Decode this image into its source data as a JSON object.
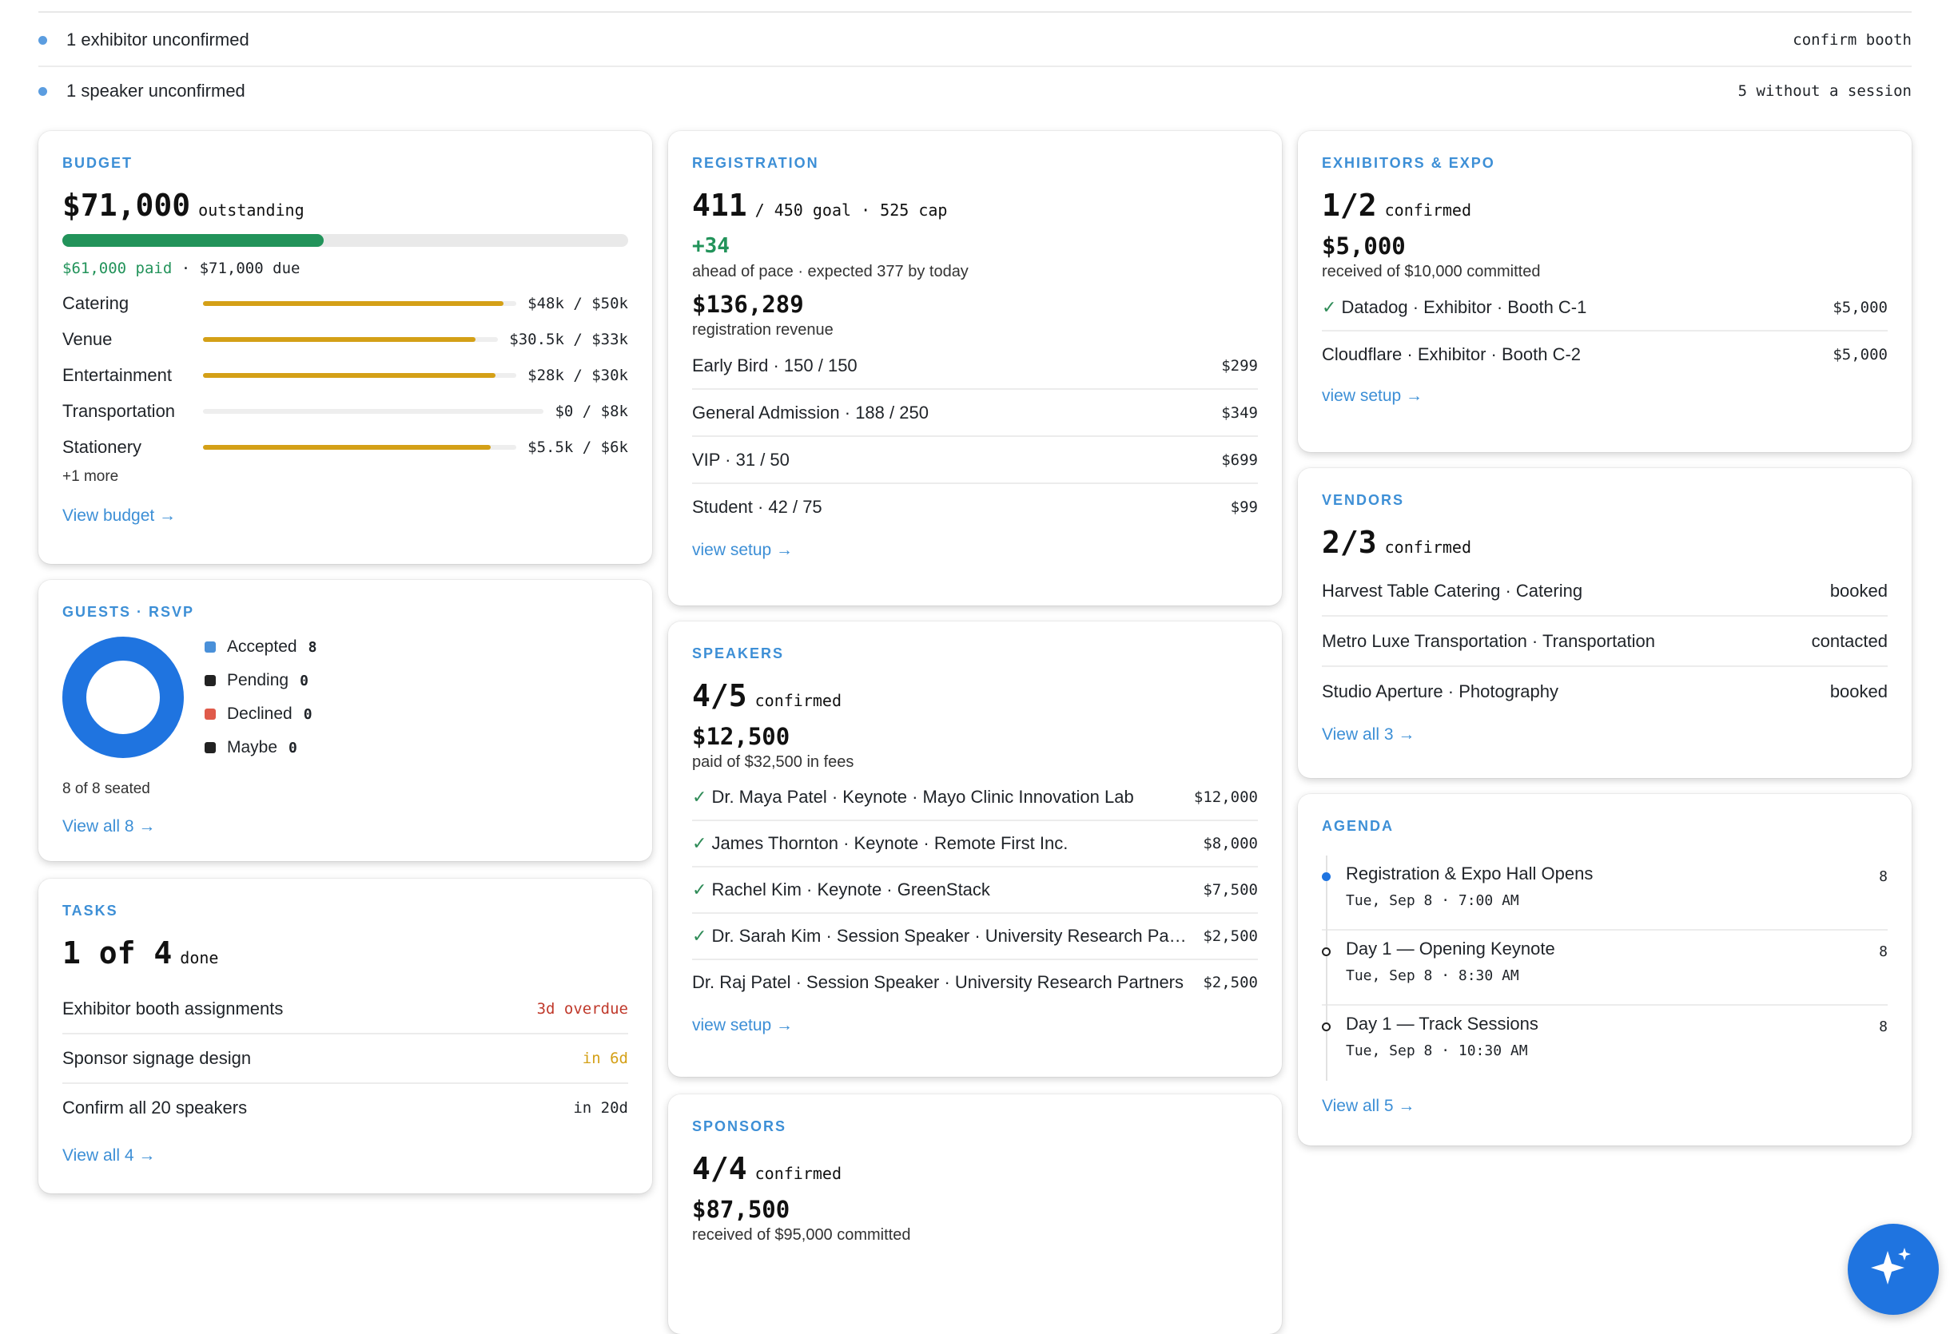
{
  "alerts": [
    {
      "text": "1 exhibitor unconfirmed",
      "action": "confirm booth"
    },
    {
      "text": "1 speaker unconfirmed",
      "action": "5 without a session"
    }
  ],
  "budget": {
    "title": "BUDGET",
    "amount": "$71,000",
    "amount_label": "outstanding",
    "paid_fraction": 0.462,
    "paid_text": "$61,000 paid",
    "due_text": "· $71,000 due",
    "categories": [
      {
        "name": "Catering",
        "amount": "$48k / $50k",
        "fraction": 0.96
      },
      {
        "name": "Venue",
        "amount": "$30.5k / $33k",
        "fraction": 0.924
      },
      {
        "name": "Entertainment",
        "amount": "$28k / $30k",
        "fraction": 0.933
      },
      {
        "name": "Transportation",
        "amount": "$0 / $8k",
        "fraction": 0.0
      },
      {
        "name": "Stationery",
        "amount": "$5.5k / $6k",
        "fraction": 0.917
      }
    ],
    "more": "+1 more",
    "link": "View budget →"
  },
  "guests": {
    "title": "GUESTS · RSVP",
    "legend": [
      {
        "label": "Accepted",
        "count": "8",
        "color": "#4a90d9"
      },
      {
        "label": "Pending",
        "count": "0",
        "color": "#222222"
      },
      {
        "label": "Declined",
        "count": "0",
        "color": "#e05a4a"
      },
      {
        "label": "Maybe",
        "count": "0",
        "color": "#222222"
      }
    ],
    "donut_color": "#1f74e0",
    "seated": "8 of 8 seated",
    "link": "View all 8 →"
  },
  "tasks": {
    "title": "TASKS",
    "done_num": "1 of 4",
    "done_label": "done",
    "items": [
      {
        "name": "Exhibitor booth assignments",
        "due": "3d overdue",
        "color": "#c0392b"
      },
      {
        "name": "Sponsor signage design",
        "due": "in 6d",
        "color": "#d4a017"
      },
      {
        "name": "Confirm all 20 speakers",
        "due": "in 20d",
        "color": "#1f2328"
      }
    ],
    "link": "View all 4 →"
  },
  "registration": {
    "title": "REGISTRATION",
    "count": "411",
    "count_detail": "/ 450 goal · 525 cap",
    "pace": "+34",
    "pace_detail": "ahead of pace · expected 377 by today",
    "revenue": "$136,289",
    "revenue_label": "registration revenue",
    "tiers": [
      {
        "name": "Early Bird · 150 / 150",
        "price": "$299"
      },
      {
        "name": "General Admission · 188 / 250",
        "price": "$349"
      },
      {
        "name": "VIP · 31 / 50",
        "price": "$699"
      },
      {
        "name": "Student · 42 / 75",
        "price": "$99"
      }
    ],
    "link": "view setup →"
  },
  "speakers": {
    "title": "SPEAKERS",
    "count": "4/5",
    "count_label": "confirmed",
    "paid": "$12,500",
    "paid_label": "paid of $32,500 in fees",
    "items": [
      {
        "check": "✓",
        "name": "Dr. Maya Patel · Keynote · Mayo Clinic Innovation Lab",
        "fee": "$12,000"
      },
      {
        "check": "✓",
        "name": "James Thornton · Keynote · Remote First Inc.",
        "fee": "$8,000"
      },
      {
        "check": "✓",
        "name": "Rachel Kim · Keynote · GreenStack",
        "fee": "$7,500"
      },
      {
        "check": "✓",
        "name": "Dr. Sarah Kim · Session Speaker · University Research Partners",
        "fee": "$2,500"
      },
      {
        "check": "",
        "name": "Dr. Raj Patel · Session Speaker · University Research Partners",
        "fee": "$2,500"
      }
    ],
    "link": "view setup →"
  },
  "sponsors": {
    "title": "SPONSORS",
    "count": "4/4",
    "count_label": "confirmed",
    "received": "$87,500",
    "received_label": "received of $95,000 committed"
  },
  "exhibitors": {
    "title": "EXHIBITORS & EXPO",
    "count": "1/2",
    "count_label": "confirmed",
    "received": "$5,000",
    "received_label": "received of $10,000 committed",
    "items": [
      {
        "check": "✓",
        "name": "Datadog · Exhibitor · Booth C-1",
        "amount": "$5,000"
      },
      {
        "check": "",
        "name": "Cloudflare · Exhibitor · Booth C-2",
        "amount": "$5,000"
      }
    ],
    "link": "view setup →"
  },
  "vendors": {
    "title": "VENDORS",
    "count": "2/3",
    "count_label": "confirmed",
    "items": [
      {
        "name": "Harvest Table Catering · Catering",
        "status": "booked"
      },
      {
        "name": "Metro Luxe Transportation · Transportation",
        "status": "contacted"
      },
      {
        "name": "Studio Aperture · Photography",
        "status": "booked"
      }
    ],
    "link": "View all 3 →"
  },
  "agenda": {
    "title": "AGENDA",
    "items": [
      {
        "title": "Registration & Expo Hall Opens",
        "time": "Tue, Sep 8 · 7:00 AM",
        "count": "8",
        "active": true
      },
      {
        "title": "Day 1 — Opening Keynote",
        "time": "Tue, Sep 8 · 8:30 AM",
        "count": "8",
        "active": false
      },
      {
        "title": "Day 1 — Track Sessions",
        "time": "Tue, Sep 8 · 10:30 AM",
        "count": "8",
        "active": false
      }
    ],
    "link": "View all 5 →"
  },
  "fab": {
    "icon": "sparkle-icon"
  }
}
